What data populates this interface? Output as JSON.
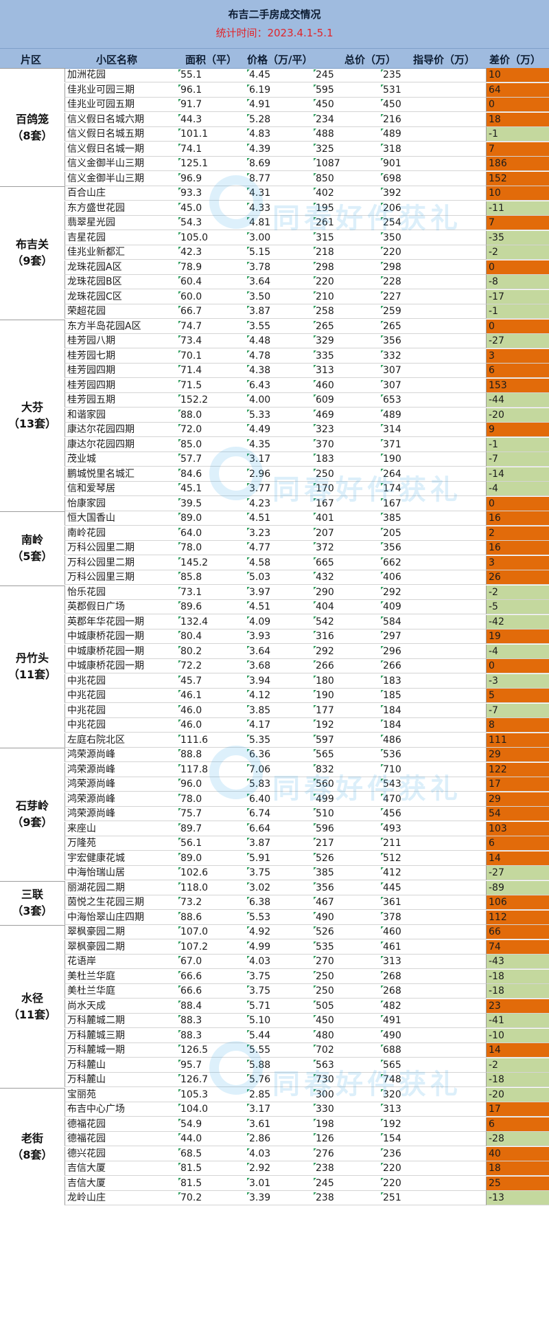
{
  "title": "布吉二手房成交情况",
  "subtitle": "统计时间：2023.4.1-5.1",
  "columns": {
    "district": "片区",
    "name": "小区名称",
    "area": "面积（平）",
    "price": "价格（万/平）",
    "total": "总价（万）",
    "guide": "指导价（万）",
    "diff": "差价（万）"
  },
  "colors": {
    "header": "#9fbbdf",
    "positive": "#e26b0a",
    "negative": "#c4d89e",
    "title_red": "#e0242a"
  },
  "watermark": {
    "icon": "logo-ring-icon",
    "text": "同春好件获礼"
  },
  "groups": [
    {
      "name": "百鸽笼",
      "count": "（8套）",
      "rows": [
        [
          "加洲花园",
          "55.1",
          "4.45",
          "245",
          "235",
          "10"
        ],
        [
          "佳兆业可园三期",
          "96.1",
          "6.19",
          "595",
          "531",
          "64"
        ],
        [
          "佳兆业可园五期",
          "91.7",
          "4.91",
          "450",
          "450",
          "0"
        ],
        [
          "信义假日名城六期",
          "44.3",
          "5.28",
          "234",
          "216",
          "18"
        ],
        [
          "信义假日名城五期",
          "101.1",
          "4.83",
          "488",
          "489",
          "-1"
        ],
        [
          "信义假日名城一期",
          "74.1",
          "4.39",
          "325",
          "318",
          "7"
        ],
        [
          "信义金御半山三期",
          "125.1",
          "8.69",
          "1087",
          "901",
          "186"
        ],
        [
          "信义金御半山三期",
          "96.9",
          "8.77",
          "850",
          "698",
          "152"
        ]
      ]
    },
    {
      "name": "布吉关",
      "count": "（9套）",
      "rows": [
        [
          "百合山庄",
          "93.3",
          "4.31",
          "402",
          "392",
          "10"
        ],
        [
          "东方盛世花园",
          "45.0",
          "4.33",
          "195",
          "206",
          "-11"
        ],
        [
          "翡翠星光园",
          "54.3",
          "4.81",
          "261",
          "254",
          "7"
        ],
        [
          "吉星花园",
          "105.0",
          "3.00",
          "315",
          "350",
          "-35"
        ],
        [
          "佳兆业新都汇",
          "42.3",
          "5.15",
          "218",
          "220",
          "-2"
        ],
        [
          "龙珠花园A区",
          "78.9",
          "3.78",
          "298",
          "298",
          "0"
        ],
        [
          "龙珠花园B区",
          "60.4",
          "3.64",
          "220",
          "228",
          "-8"
        ],
        [
          "龙珠花园C区",
          "60.0",
          "3.50",
          "210",
          "227",
          "-17"
        ],
        [
          "荣超花园",
          "66.7",
          "3.87",
          "258",
          "259",
          "-1"
        ]
      ]
    },
    {
      "name": "大芬",
      "count": "（13套）",
      "rows": [
        [
          "东方半岛花园A区",
          "74.7",
          "3.55",
          "265",
          "265",
          "0"
        ],
        [
          "桂芳园八期",
          "73.4",
          "4.48",
          "329",
          "356",
          "-27"
        ],
        [
          "桂芳园七期",
          "70.1",
          "4.78",
          "335",
          "332",
          "3"
        ],
        [
          "桂芳园四期",
          "71.4",
          "4.38",
          "313",
          "307",
          "6"
        ],
        [
          "桂芳园四期",
          "71.5",
          "6.43",
          "460",
          "307",
          "153"
        ],
        [
          "桂芳园五期",
          "152.2",
          "4.00",
          "609",
          "653",
          "-44"
        ],
        [
          "和谐家园",
          "88.0",
          "5.33",
          "469",
          "489",
          "-20"
        ],
        [
          "康达尔花园四期",
          "72.0",
          "4.49",
          "323",
          "314",
          "9"
        ],
        [
          "康达尔花园四期",
          "85.0",
          "4.35",
          "370",
          "371",
          "-1"
        ],
        [
          "茂业城",
          "57.7",
          "3.17",
          "183",
          "190",
          "-7"
        ],
        [
          "鹏城悦里名城汇",
          "84.6",
          "2.96",
          "250",
          "264",
          "-14"
        ],
        [
          "信和爱琴居",
          "45.1",
          "3.77",
          "170",
          "174",
          "-4"
        ],
        [
          "怡康家园",
          "39.5",
          "4.23",
          "167",
          "167",
          "0"
        ]
      ]
    },
    {
      "name": "南岭",
      "count": "（5套）",
      "rows": [
        [
          "恒大国香山",
          "89.0",
          "4.51",
          "401",
          "385",
          "16"
        ],
        [
          "南岭花园",
          "64.0",
          "3.23",
          "207",
          "205",
          "2"
        ],
        [
          "万科公园里二期",
          "78.0",
          "4.77",
          "372",
          "356",
          "16"
        ],
        [
          "万科公园里二期",
          "145.2",
          "4.58",
          "665",
          "662",
          "3"
        ],
        [
          "万科公园里三期",
          "85.8",
          "5.03",
          "432",
          "406",
          "26"
        ]
      ]
    },
    {
      "name": "丹竹头",
      "count": "（11套）",
      "rows": [
        [
          "怡乐花园",
          "73.1",
          "3.97",
          "290",
          "292",
          "-2"
        ],
        [
          "英郡假日广场",
          "89.6",
          "4.51",
          "404",
          "409",
          "-5"
        ],
        [
          "英郡年华花园一期",
          "132.4",
          "4.09",
          "542",
          "584",
          "-42"
        ],
        [
          "中城康桥花园一期",
          "80.4",
          "3.93",
          "316",
          "297",
          "19"
        ],
        [
          "中城康桥花园一期",
          "80.2",
          "3.64",
          "292",
          "296",
          "-4"
        ],
        [
          "中城康桥花园一期",
          "72.2",
          "3.68",
          "266",
          "266",
          "0"
        ],
        [
          "中兆花园",
          "45.7",
          "3.94",
          "180",
          "183",
          "-3"
        ],
        [
          "中兆花园",
          "46.1",
          "4.12",
          "190",
          "185",
          "5"
        ],
        [
          "中兆花园",
          "46.0",
          "3.85",
          "177",
          "184",
          "-7"
        ],
        [
          "中兆花园",
          "46.0",
          "4.17",
          "192",
          "184",
          "8"
        ],
        [
          "左庭右院北区",
          "111.6",
          "5.35",
          "597",
          "486",
          "111"
        ]
      ]
    },
    {
      "name": "石芽岭",
      "count": "（9套）",
      "rows": [
        [
          "鸿荣源尚峰",
          "88.8",
          "6.36",
          "565",
          "536",
          "29"
        ],
        [
          "鸿荣源尚峰",
          "117.8",
          "7.06",
          "832",
          "710",
          "122"
        ],
        [
          "鸿荣源尚峰",
          "96.0",
          "5.83",
          "560",
          "543",
          "17"
        ],
        [
          "鸿荣源尚峰",
          "78.0",
          "6.40",
          "499",
          "470",
          "29"
        ],
        [
          "鸿荣源尚峰",
          "75.7",
          "6.74",
          "510",
          "456",
          "54"
        ],
        [
          "来座山",
          "89.7",
          "6.64",
          "596",
          "493",
          "103"
        ],
        [
          "万隆苑",
          "56.1",
          "3.87",
          "217",
          "211",
          "6"
        ],
        [
          "宇宏健康花城",
          "89.0",
          "5.91",
          "526",
          "512",
          "14"
        ],
        [
          "中海怡瑞山居",
          "102.6",
          "3.75",
          "385",
          "412",
          "-27"
        ]
      ]
    },
    {
      "name": "三联",
      "count": "（3套）",
      "rows": [
        [
          "丽湖花园二期",
          "118.0",
          "3.02",
          "356",
          "445",
          "-89"
        ],
        [
          "茵悦之生花园三期",
          "73.2",
          "6.38",
          "467",
          "361",
          "106"
        ],
        [
          "中海怡翠山庄四期",
          "88.6",
          "5.53",
          "490",
          "378",
          "112"
        ]
      ]
    },
    {
      "name": "水径",
      "count": "（11套）",
      "rows": [
        [
          "翠枫豪园二期",
          "107.0",
          "4.92",
          "526",
          "460",
          "66"
        ],
        [
          "翠枫豪园二期",
          "107.2",
          "4.99",
          "535",
          "461",
          "74"
        ],
        [
          "花语岸",
          "67.0",
          "4.03",
          "270",
          "313",
          "-43"
        ],
        [
          "美杜兰华庭",
          "66.6",
          "3.75",
          "250",
          "268",
          "-18"
        ],
        [
          "美杜兰华庭",
          "66.6",
          "3.75",
          "250",
          "268",
          "-18"
        ],
        [
          "尚水天成",
          "88.4",
          "5.71",
          "505",
          "482",
          "23"
        ],
        [
          "万科麓城二期",
          "88.3",
          "5.10",
          "450",
          "491",
          "-41"
        ],
        [
          "万科麓城三期",
          "88.3",
          "5.44",
          "480",
          "490",
          "-10"
        ],
        [
          "万科麓城一期",
          "126.5",
          "5.55",
          "702",
          "688",
          "14"
        ],
        [
          "万科麓山",
          "95.7",
          "5.88",
          "563",
          "565",
          "-2"
        ],
        [
          "万科麓山",
          "126.7",
          "5.76",
          "730",
          "748",
          "-18"
        ]
      ]
    },
    {
      "name": "老街",
      "count": "（8套）",
      "rows": [
        [
          "宝丽苑",
          "105.3",
          "2.85",
          "300",
          "320",
          "-20"
        ],
        [
          "布吉中心广场",
          "104.0",
          "3.17",
          "330",
          "313",
          "17"
        ],
        [
          "德福花园",
          "54.9",
          "3.61",
          "198",
          "192",
          "6"
        ],
        [
          "德福花园",
          "44.0",
          "2.86",
          "126",
          "154",
          "-28"
        ],
        [
          "德兴花园",
          "68.5",
          "4.03",
          "276",
          "236",
          "40"
        ],
        [
          "吉信大厦",
          "81.5",
          "2.92",
          "238",
          "220",
          "18"
        ],
        [
          "吉信大厦",
          "81.5",
          "3.01",
          "245",
          "220",
          "25"
        ],
        [
          "龙岭山庄",
          "70.2",
          "3.39",
          "238",
          "251",
          "-13"
        ]
      ]
    }
  ]
}
